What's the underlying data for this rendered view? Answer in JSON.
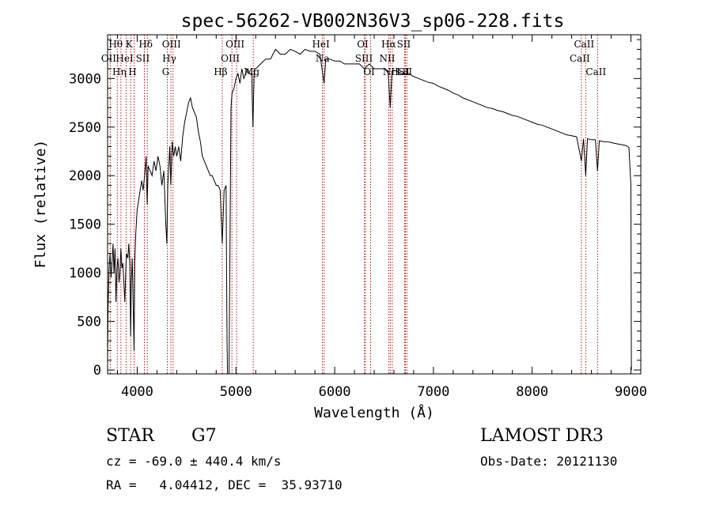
{
  "chart_data": {
    "type": "line",
    "title": "spec-56262-VB002N36V3_sp06-228.fits",
    "xlabel": "Wavelength (Å)",
    "ylabel": "Flux (relative)",
    "xlim": [
      3700,
      9100
    ],
    "ylim": [
      -40,
      3450
    ],
    "x_ticks": [
      4000,
      5000,
      6000,
      7000,
      8000,
      9000
    ],
    "y_ticks": [
      0,
      500,
      1000,
      1500,
      2000,
      2500,
      3000
    ],
    "grid": false,
    "series": [
      {
        "name": "flux",
        "points": [
          [
            3700,
            100
          ],
          [
            3705,
            650
          ],
          [
            3715,
            1050
          ],
          [
            3725,
            1200
          ],
          [
            3735,
            950
          ],
          [
            3745,
            1100
          ],
          [
            3755,
            1300
          ],
          [
            3765,
            1000
          ],
          [
            3775,
            1250
          ],
          [
            3785,
            700
          ],
          [
            3795,
            1050
          ],
          [
            3805,
            1150
          ],
          [
            3815,
            900
          ],
          [
            3825,
            1000
          ],
          [
            3835,
            1250
          ],
          [
            3845,
            1050
          ],
          [
            3855,
            1100
          ],
          [
            3865,
            900
          ],
          [
            3875,
            700
          ],
          [
            3890,
            1200
          ],
          [
            3905,
            1150
          ],
          [
            3915,
            1300
          ],
          [
            3925,
            1100
          ],
          [
            3933,
            350
          ],
          [
            3940,
            900
          ],
          [
            3950,
            1150
          ],
          [
            3960,
            600
          ],
          [
            3968,
            200
          ],
          [
            3975,
            1100
          ],
          [
            3985,
            1400
          ],
          [
            4000,
            1650
          ],
          [
            4015,
            1750
          ],
          [
            4030,
            1850
          ],
          [
            4045,
            1950
          ],
          [
            4060,
            1850
          ],
          [
            4075,
            2000
          ],
          [
            4090,
            2200
          ],
          [
            4101,
            1700
          ],
          [
            4110,
            2100
          ],
          [
            4130,
            2050
          ],
          [
            4150,
            2000
          ],
          [
            4170,
            2150
          ],
          [
            4190,
            2050
          ],
          [
            4210,
            2200
          ],
          [
            4230,
            2100
          ],
          [
            4250,
            1900
          ],
          [
            4270,
            2050
          ],
          [
            4290,
            1500
          ],
          [
            4300,
            1300
          ],
          [
            4310,
            1900
          ],
          [
            4330,
            2300
          ],
          [
            4340,
            1900
          ],
          [
            4355,
            2350
          ],
          [
            4370,
            2200
          ],
          [
            4385,
            2300
          ],
          [
            4400,
            2200
          ],
          [
            4420,
            2300
          ],
          [
            4440,
            2150
          ],
          [
            4460,
            2400
          ],
          [
            4480,
            2550
          ],
          [
            4500,
            2650
          ],
          [
            4520,
            2750
          ],
          [
            4540,
            2800
          ],
          [
            4560,
            2700
          ],
          [
            4580,
            2650
          ],
          [
            4600,
            2600
          ],
          [
            4620,
            2450
          ],
          [
            4640,
            2350
          ],
          [
            4660,
            2200
          ],
          [
            4680,
            2150
          ],
          [
            4700,
            2100
          ],
          [
            4720,
            2050
          ],
          [
            4740,
            2000
          ],
          [
            4760,
            2000
          ],
          [
            4780,
            1950
          ],
          [
            4800,
            1900
          ],
          [
            4820,
            1900
          ],
          [
            4840,
            1850
          ],
          [
            4861,
            1300
          ],
          [
            4880,
            1850
          ],
          [
            4900,
            1900
          ],
          [
            4905,
            1000
          ],
          [
            4910,
            300
          ],
          [
            4915,
            -40
          ],
          [
            4930,
            -40
          ],
          [
            4950,
            2700
          ],
          [
            4960,
            2850
          ],
          [
            4980,
            2900
          ],
          [
            5000,
            3000
          ],
          [
            5020,
            3050
          ],
          [
            5040,
            2950
          ],
          [
            5060,
            3100
          ],
          [
            5080,
            3000
          ],
          [
            5100,
            3050
          ],
          [
            5120,
            3100
          ],
          [
            5140,
            3050
          ],
          [
            5160,
            3050
          ],
          [
            5172,
            2500
          ],
          [
            5185,
            3100
          ],
          [
            5200,
            3100
          ],
          [
            5250,
            3150
          ],
          [
            5300,
            3200
          ],
          [
            5350,
            3200
          ],
          [
            5400,
            3300
          ],
          [
            5450,
            3250
          ],
          [
            5500,
            3250
          ],
          [
            5550,
            3300
          ],
          [
            5600,
            3280
          ],
          [
            5650,
            3250
          ],
          [
            5700,
            3300
          ],
          [
            5750,
            3280
          ],
          [
            5800,
            3280
          ],
          [
            5850,
            3250
          ],
          [
            5893,
            2950
          ],
          [
            5910,
            3200
          ],
          [
            5950,
            3200
          ],
          [
            6000,
            3180
          ],
          [
            6050,
            3180
          ],
          [
            6100,
            3150
          ],
          [
            6150,
            3150
          ],
          [
            6200,
            3150
          ],
          [
            6250,
            3150
          ],
          [
            6300,
            3100
          ],
          [
            6350,
            3150
          ],
          [
            6400,
            3100
          ],
          [
            6450,
            3100
          ],
          [
            6500,
            3100
          ],
          [
            6540,
            3080
          ],
          [
            6563,
            2700
          ],
          [
            6580,
            3080
          ],
          [
            6620,
            3080
          ],
          [
            6680,
            3050
          ],
          [
            6750,
            3050
          ],
          [
            6800,
            3020
          ],
          [
            6850,
            3000
          ],
          [
            6900,
            2980
          ],
          [
            6950,
            2960
          ],
          [
            7000,
            2950
          ],
          [
            7050,
            2920
          ],
          [
            7100,
            2900
          ],
          [
            7150,
            2880
          ],
          [
            7200,
            2850
          ],
          [
            7250,
            2830
          ],
          [
            7300,
            2800
          ],
          [
            7350,
            2780
          ],
          [
            7400,
            2760
          ],
          [
            7450,
            2740
          ],
          [
            7500,
            2720
          ],
          [
            7550,
            2700
          ],
          [
            7600,
            2690
          ],
          [
            7650,
            2670
          ],
          [
            7700,
            2660
          ],
          [
            7750,
            2640
          ],
          [
            7800,
            2620
          ],
          [
            7850,
            2610
          ],
          [
            7900,
            2590
          ],
          [
            7950,
            2570
          ],
          [
            8000,
            2550
          ],
          [
            8050,
            2530
          ],
          [
            8100,
            2520
          ],
          [
            8150,
            2500
          ],
          [
            8200,
            2480
          ],
          [
            8250,
            2460
          ],
          [
            8300,
            2440
          ],
          [
            8350,
            2420
          ],
          [
            8400,
            2410
          ],
          [
            8450,
            2400
          ],
          [
            8498,
            2150
          ],
          [
            8520,
            2380
          ],
          [
            8542,
            2000
          ],
          [
            8560,
            2380
          ],
          [
            8600,
            2370
          ],
          [
            8640,
            2370
          ],
          [
            8662,
            2050
          ],
          [
            8680,
            2360
          ],
          [
            8720,
            2350
          ],
          [
            8760,
            2350
          ],
          [
            8800,
            2340
          ],
          [
            8850,
            2330
          ],
          [
            8900,
            2320
          ],
          [
            8950,
            2310
          ],
          [
            8980,
            2290
          ],
          [
            9000,
            1900
          ],
          [
            9005,
            0
          ]
        ]
      }
    ],
    "lines": [
      {
        "name": "Hθ",
        "wave": 3798,
        "row": 0
      },
      {
        "name": "OII",
        "wave": 3727,
        "row": 1
      },
      {
        "name": "Hη",
        "wave": 3835,
        "row": 2
      },
      {
        "name": "K",
        "wave": 3934,
        "row": 0
      },
      {
        "name": "HeI",
        "wave": 3889,
        "row": 1
      },
      {
        "name": "H",
        "wave": 3968,
        "row": 2
      },
      {
        "name": "SII",
        "wave": 4072,
        "row": 1
      },
      {
        "name": "Hδ",
        "wave": 4102,
        "row": 0
      },
      {
        "name": "OIII",
        "wave": 4363,
        "row": 0
      },
      {
        "name": "Hγ",
        "wave": 4341,
        "row": 1
      },
      {
        "name": "G",
        "wave": 4305,
        "row": 2
      },
      {
        "name": "Hβ",
        "wave": 4861,
        "row": 2
      },
      {
        "name": "OIII",
        "wave": 5007,
        "row": 0
      },
      {
        "name": "OIII",
        "wave": 4959,
        "row": 1
      },
      {
        "name": "Mg",
        "wave": 5175,
        "row": 2
      },
      {
        "name": "HeI",
        "wave": 5876,
        "row": 0
      },
      {
        "name": "Na",
        "wave": 5893,
        "row": 1
      },
      {
        "name": "OI",
        "wave": 6300,
        "row": 0
      },
      {
        "name": "SIII",
        "wave": 6312,
        "row": 1
      },
      {
        "name": "OI",
        "wave": 6364,
        "row": 2
      },
      {
        "name": "Hα",
        "wave": 6563,
        "row": 0
      },
      {
        "name": "NII",
        "wave": 6548,
        "row": 1
      },
      {
        "name": "NII",
        "wave": 6583,
        "row": 2
      },
      {
        "name": "SII",
        "wave": 6716,
        "row": 0
      },
      {
        "name": "SII",
        "wave": 6731,
        "row": 2
      },
      {
        "name": "LiI",
        "wave": 6708,
        "row": 2
      },
      {
        "name": "CaII",
        "wave": 8542,
        "row": 0
      },
      {
        "name": "CaII",
        "wave": 8498,
        "row": 1
      },
      {
        "name": "CaII",
        "wave": 8662,
        "row": 2
      }
    ]
  },
  "info": {
    "class_label": "STAR",
    "subclass_label": "G7",
    "survey_label": "LAMOST DR3",
    "redshift": "cz = -69.0 ± 440.4 km/s",
    "obs_date": "Obs-Date: 20121130",
    "coords": "RA =   4.04412, DEC =  35.93710"
  },
  "colors": {
    "spectrum": "#000000",
    "line_marker": "#b00000",
    "axis": "#000000"
  }
}
